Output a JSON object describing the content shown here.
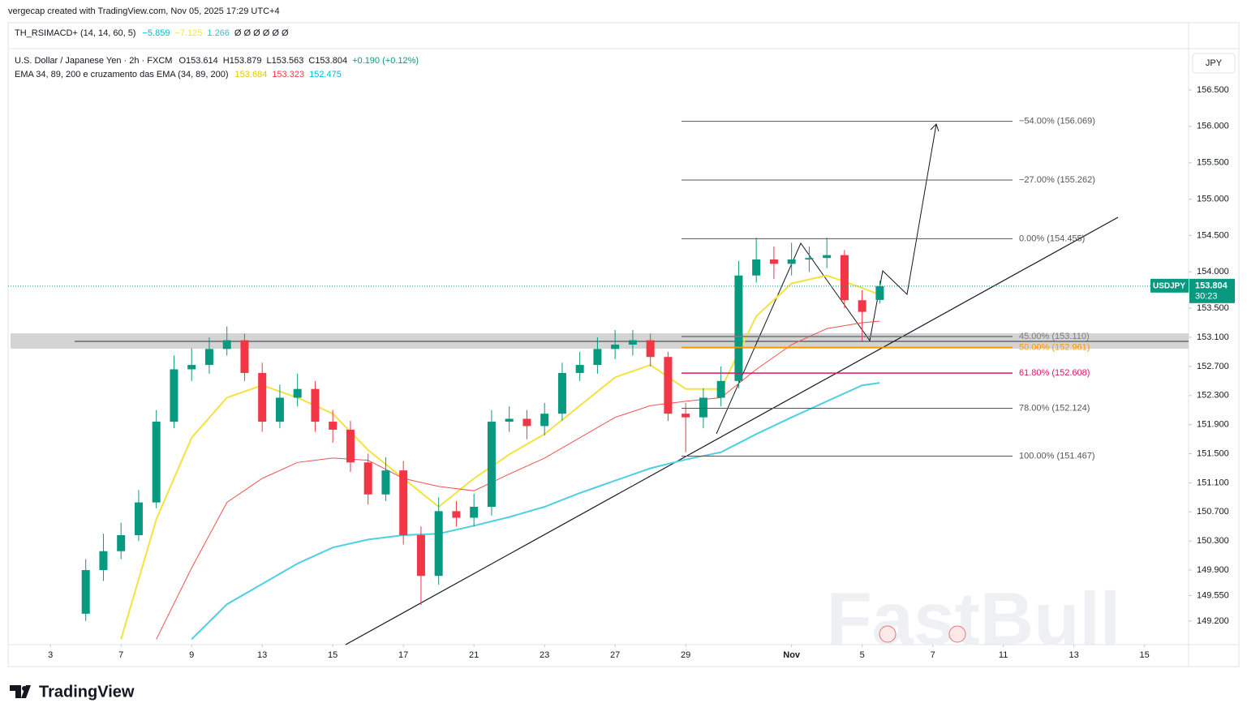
{
  "header": {
    "credit": "vergecap created with TradingView.com, Nov 05, 2025 17:29 UTC+4"
  },
  "indicator": {
    "name": "TH_RSIMACD+ (14, 14, 60, 5)",
    "readouts": [
      {
        "value": -5.859,
        "label": "−5.859",
        "color": "#00bcd4"
      },
      {
        "value": -7.125,
        "label": "−7.125",
        "color": "#f5e33c"
      },
      {
        "value": 1.266,
        "label": "1.266",
        "color": "#26c6da"
      }
    ],
    "flags": "Ø Ø Ø Ø Ø Ø"
  },
  "footer": {
    "brand": "TradingView",
    "watermark": "FastBull"
  },
  "chart_data": {
    "type": "candlestick",
    "symbol": "U.S. Dollar / Japanese Yen · 2h · FXCM",
    "ohlc_readout": [
      {
        "value": 153.614,
        "label": "O153.614"
      },
      {
        "value": 153.879,
        "label": "H153.879"
      },
      {
        "value": 153.563,
        "label": "L153.563"
      },
      {
        "value": 153.804,
        "label": "C153.804"
      },
      {
        "value": 0.19,
        "label": "+0.190 (+0.12%)",
        "color": "#089981"
      }
    ],
    "overlay_name": "EMA 34, 89, 200 e cruzamento das EMA (34, 89, 200)",
    "currency": "JPY",
    "price_tag": {
      "name": "USDJPY",
      "countdown": "30:23",
      "color": "#089981"
    },
    "up_color": "#089981",
    "down_color": "#f23645",
    "x": [
      1.0,
      1.5,
      2.0,
      2.5,
      3.0,
      3.5,
      4.0,
      4.5,
      5.0,
      5.5,
      6.0,
      6.5,
      7.0,
      7.5,
      8.0,
      8.5,
      9.0,
      9.5,
      10.0,
      10.5,
      11.0,
      11.5,
      12.0,
      12.5,
      13.0,
      13.5,
      14.0,
      14.5,
      15.0,
      15.5,
      16.0,
      16.5,
      17.0,
      17.5,
      18.0,
      18.5,
      19.0,
      19.5,
      20.0,
      20.5,
      21.0,
      21.5,
      22.0,
      22.5,
      23.0,
      23.5
    ],
    "open": [
      149.3,
      149.9,
      150.16,
      150.38,
      150.83,
      151.94,
      152.66,
      152.72,
      152.94,
      153.06,
      152.61,
      151.94,
      152.27,
      152.39,
      151.94,
      151.83,
      151.38,
      150.94,
      151.27,
      150.38,
      149.82,
      150.71,
      150.62,
      150.77,
      151.94,
      151.98,
      151.88,
      152.05,
      152.61,
      152.72,
      152.94,
      153.0,
      153.06,
      152.83,
      152.05,
      152.0,
      152.27,
      152.5,
      153.95,
      154.17,
      154.11,
      154.17,
      154.19,
      154.23,
      153.61,
      153.614
    ],
    "high": [
      150.05,
      150.4,
      150.55,
      151.0,
      152.1,
      152.85,
      152.95,
      153.1,
      153.25,
      153.15,
      152.75,
      152.45,
      152.6,
      152.5,
      152.1,
      151.95,
      151.5,
      151.45,
      151.4,
      150.5,
      150.9,
      150.85,
      150.95,
      152.1,
      152.15,
      152.1,
      152.2,
      152.75,
      152.9,
      153.1,
      153.2,
      153.2,
      153.15,
      152.9,
      152.2,
      152.4,
      152.7,
      154.15,
      154.47,
      154.35,
      154.4,
      154.35,
      154.47,
      154.3,
      153.75,
      153.879
    ],
    "low": [
      149.2,
      149.75,
      150.05,
      150.3,
      150.75,
      151.85,
      152.5,
      152.6,
      152.85,
      152.5,
      151.8,
      151.85,
      152.15,
      151.8,
      151.65,
      151.25,
      150.8,
      150.85,
      150.25,
      149.42,
      149.7,
      150.5,
      150.5,
      150.65,
      151.8,
      151.7,
      151.75,
      151.95,
      152.5,
      152.6,
      152.8,
      152.85,
      152.7,
      151.95,
      151.52,
      151.85,
      152.15,
      152.4,
      153.85,
      153.9,
      153.95,
      154.0,
      154.05,
      153.5,
      153.05,
      153.563
    ],
    "close": [
      149.9,
      150.16,
      150.38,
      150.83,
      151.94,
      152.66,
      152.72,
      152.94,
      153.06,
      152.61,
      151.94,
      152.27,
      152.39,
      151.94,
      151.83,
      151.38,
      150.94,
      151.27,
      150.38,
      149.82,
      150.71,
      150.62,
      150.77,
      151.94,
      151.98,
      151.88,
      152.05,
      152.61,
      152.72,
      152.94,
      153.0,
      153.06,
      152.83,
      152.05,
      152.0,
      152.27,
      152.5,
      153.95,
      154.17,
      154.11,
      154.17,
      154.19,
      154.23,
      153.61,
      153.45,
      153.804
    ],
    "series": [
      {
        "name": "EMA 34",
        "color": "#f3e33f",
        "legend_color": "#e2c900",
        "x": [
          2,
          3,
          4,
          5,
          6,
          7,
          8,
          9,
          10,
          11,
          12,
          13,
          14,
          15,
          16,
          17,
          18,
          19,
          20,
          21,
          22,
          23,
          23.5
        ],
        "values": [
          148.95,
          150.6,
          151.72,
          152.27,
          152.44,
          152.27,
          152.05,
          151.55,
          151.16,
          150.77,
          151.16,
          151.49,
          151.77,
          152.16,
          152.55,
          152.72,
          152.39,
          152.39,
          153.39,
          153.84,
          153.95,
          153.78,
          153.684
        ]
      },
      {
        "name": "EMA 89",
        "color": "#f0524f",
        "legend_color": "#f23645",
        "x": [
          3,
          4,
          5,
          6,
          7,
          8,
          9,
          10,
          11,
          12,
          13,
          14,
          15,
          16,
          17,
          18,
          19,
          20,
          21,
          22,
          23,
          23.5
        ],
        "values": [
          148.95,
          149.93,
          150.83,
          151.16,
          151.38,
          151.44,
          151.41,
          151.16,
          151.05,
          150.99,
          151.22,
          151.44,
          151.72,
          152.0,
          152.16,
          152.22,
          152.27,
          152.66,
          153.0,
          153.22,
          153.3,
          153.323
        ]
      },
      {
        "name": "EMA 200",
        "color": "#4dd0e1",
        "legend_color": "#00bcd4",
        "x": [
          4,
          5,
          6,
          7,
          8,
          9,
          10,
          11,
          12,
          13,
          14,
          15,
          16,
          17,
          18,
          19,
          20,
          21,
          22,
          23,
          23.5
        ],
        "values": [
          148.95,
          149.43,
          149.71,
          149.99,
          150.21,
          150.32,
          150.38,
          150.4,
          150.51,
          150.63,
          150.77,
          150.96,
          151.13,
          151.3,
          151.42,
          151.52,
          151.77,
          152.0,
          152.22,
          152.44,
          152.475
        ]
      }
    ],
    "fib_levels": [
      {
        "value": 156.069,
        "label": "−54.00% (156.069)",
        "color": "#555555"
      },
      {
        "value": 155.262,
        "label": "−27.00% (155.262)",
        "color": "#555555"
      },
      {
        "value": 154.455,
        "label": "0.00% (154.455)",
        "color": "#555555"
      },
      {
        "value": 153.11,
        "label": "45.00% (153.110)",
        "color": "#787b86"
      },
      {
        "value": 152.961,
        "label": "50.00% (152.961)",
        "color": "#ff9800"
      },
      {
        "value": 152.608,
        "label": "61.80% (152.608)",
        "color": "#d81b60"
      },
      {
        "value": 152.124,
        "label": "78.00% (152.124)",
        "color": "#555555"
      },
      {
        "value": 151.467,
        "label": "100.00% (151.467)",
        "color": "#555555"
      }
    ],
    "xlim": [
      -1.2,
      32.25
    ],
    "xticks": [
      {
        "value": 0,
        "label": "3"
      },
      {
        "value": 2,
        "label": "7"
      },
      {
        "value": 4,
        "label": "9"
      },
      {
        "value": 6,
        "label": "13"
      },
      {
        "value": 8,
        "label": "15"
      },
      {
        "value": 10,
        "label": "17"
      },
      {
        "value": 12,
        "label": "21"
      },
      {
        "value": 14,
        "label": "23"
      },
      {
        "value": 16,
        "label": "27"
      },
      {
        "value": 18,
        "label": "29"
      },
      {
        "value": 21,
        "label": "Nov"
      },
      {
        "value": 23,
        "label": "5"
      },
      {
        "value": 25,
        "label": "7"
      },
      {
        "value": 27,
        "label": "11"
      },
      {
        "value": 29,
        "label": "13"
      },
      {
        "value": 31,
        "label": "15"
      }
    ],
    "ylim": [
      148.875,
      157.425
    ],
    "yticks": [
      {
        "value": 156.5,
        "label": "156.500"
      },
      {
        "value": 156.0,
        "label": "156.000"
      },
      {
        "value": 155.5,
        "label": "155.500"
      },
      {
        "value": 155.0,
        "label": "155.000"
      },
      {
        "value": 154.5,
        "label": "154.500"
      },
      {
        "value": 154.0,
        "label": "154.000"
      },
      {
        "value": 153.5,
        "label": "153.500"
      },
      {
        "value": 153.1,
        "label": "153.100"
      },
      {
        "value": 152.7,
        "label": "152.700"
      },
      {
        "value": 152.3,
        "label": "152.300"
      },
      {
        "value": 151.9,
        "label": "151.900"
      },
      {
        "value": 151.5,
        "label": "151.500"
      },
      {
        "value": 151.1,
        "label": "151.100"
      },
      {
        "value": 150.7,
        "label": "150.700"
      },
      {
        "value": 150.3,
        "label": "150.300"
      },
      {
        "value": 149.9,
        "label": "149.900"
      },
      {
        "value": 149.55,
        "label": "149.550"
      },
      {
        "value": 149.2,
        "label": "149.200"
      }
    ],
    "grid": false
  }
}
